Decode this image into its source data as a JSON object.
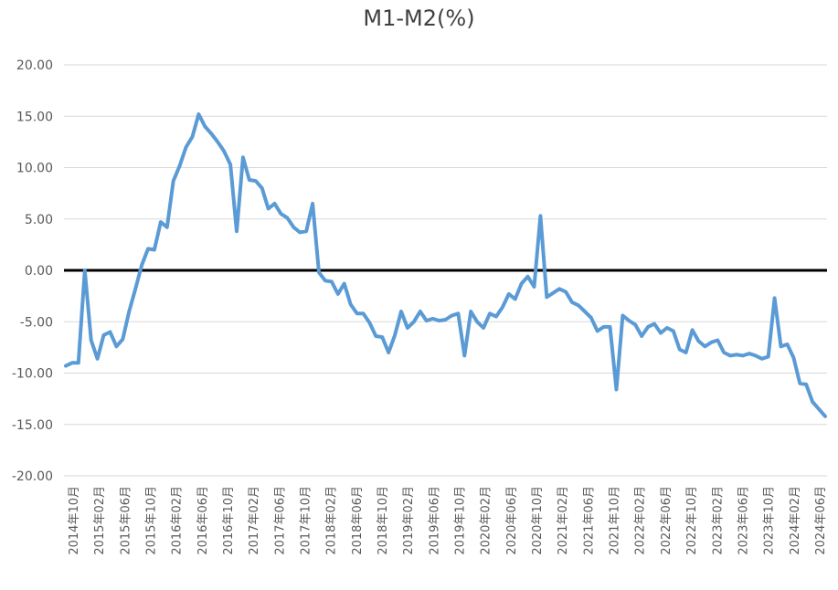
{
  "chart_data": {
    "type": "line",
    "title": "M1-M2(%)",
    "xlabel": "",
    "ylabel": "",
    "ylim": [
      -20,
      20
    ],
    "y_ticks": [
      "20.00",
      "15.00",
      "10.00",
      "5.00",
      "0.00",
      "-5.00",
      "-10.00",
      "-15.00",
      "-20.00"
    ],
    "x_tick_labels": [
      "2014年10月",
      "2015年02月",
      "2015年06月",
      "2015年10月",
      "2016年02月",
      "2016年06月",
      "2016年10月",
      "2017年02月",
      "2017年06月",
      "2017年10月",
      "2018年02月",
      "2018年06月",
      "2018年10月",
      "2019年02月",
      "2019年06月",
      "2019年10月",
      "2020年02月",
      "2020年06月",
      "2020年10月",
      "2021年02月",
      "2021年06月",
      "2021年10月",
      "2022年02月",
      "2022年06月",
      "2022年10月",
      "2023年02月",
      "2023年06月",
      "2023年10月",
      "2024年02月",
      "2024年06月"
    ],
    "x_start": "2014-09",
    "x_end": "2024-11",
    "grid": true,
    "zero_line": true,
    "colors": {
      "series": "#5B9BD5",
      "zero_line": "#000000",
      "grid": "#D9D9D9",
      "text": "#595959"
    },
    "series": [
      {
        "values": [
          -9.3,
          -9.0,
          -9.0,
          0.0,
          -6.8,
          -8.6,
          -6.3,
          -6.0,
          -7.4,
          -6.7,
          -4.0,
          -1.8,
          0.5,
          2.1,
          2.0,
          4.7,
          4.2,
          8.7,
          10.2,
          12.0,
          13.0,
          15.2,
          14.0,
          13.3,
          12.5,
          11.6,
          10.3,
          3.8,
          11.0,
          8.8,
          8.7,
          8.0,
          6.0,
          6.5,
          5.5,
          5.1,
          4.2,
          3.7,
          3.8,
          6.5,
          -0.2,
          -1.0,
          -1.1,
          -2.3,
          -1.3,
          -3.3,
          -4.2,
          -4.2,
          -5.1,
          -6.4,
          -6.5,
          -8.0,
          -6.3,
          -4.0,
          -5.6,
          -5.0,
          -4.0,
          -4.9,
          -4.7,
          -4.9,
          -4.8,
          -4.4,
          -4.2,
          -8.3,
          -4.0,
          -5.0,
          -5.6,
          -4.2,
          -4.5,
          -3.6,
          -2.3,
          -2.8,
          -1.3,
          -0.6,
          -1.6,
          5.3,
          -2.6,
          -2.2,
          -1.8,
          -2.1,
          -3.1,
          -3.4,
          -4.0,
          -4.6,
          -5.9,
          -5.5,
          -5.5,
          -11.6,
          -4.4,
          -4.9,
          -5.3,
          -6.4,
          -5.5,
          -5.2,
          -6.1,
          -5.6,
          -5.9,
          -7.7,
          -8.0,
          -5.8,
          -6.9,
          -7.4,
          -7.0,
          -6.8,
          -8.0,
          -8.3,
          -8.2,
          -8.3,
          -8.1,
          -8.3,
          -8.6,
          -8.4,
          -2.7,
          -7.4,
          -7.2,
          -8.5,
          -11.0,
          -11.1,
          -12.8,
          -13.5,
          -14.2
        ]
      }
    ]
  }
}
